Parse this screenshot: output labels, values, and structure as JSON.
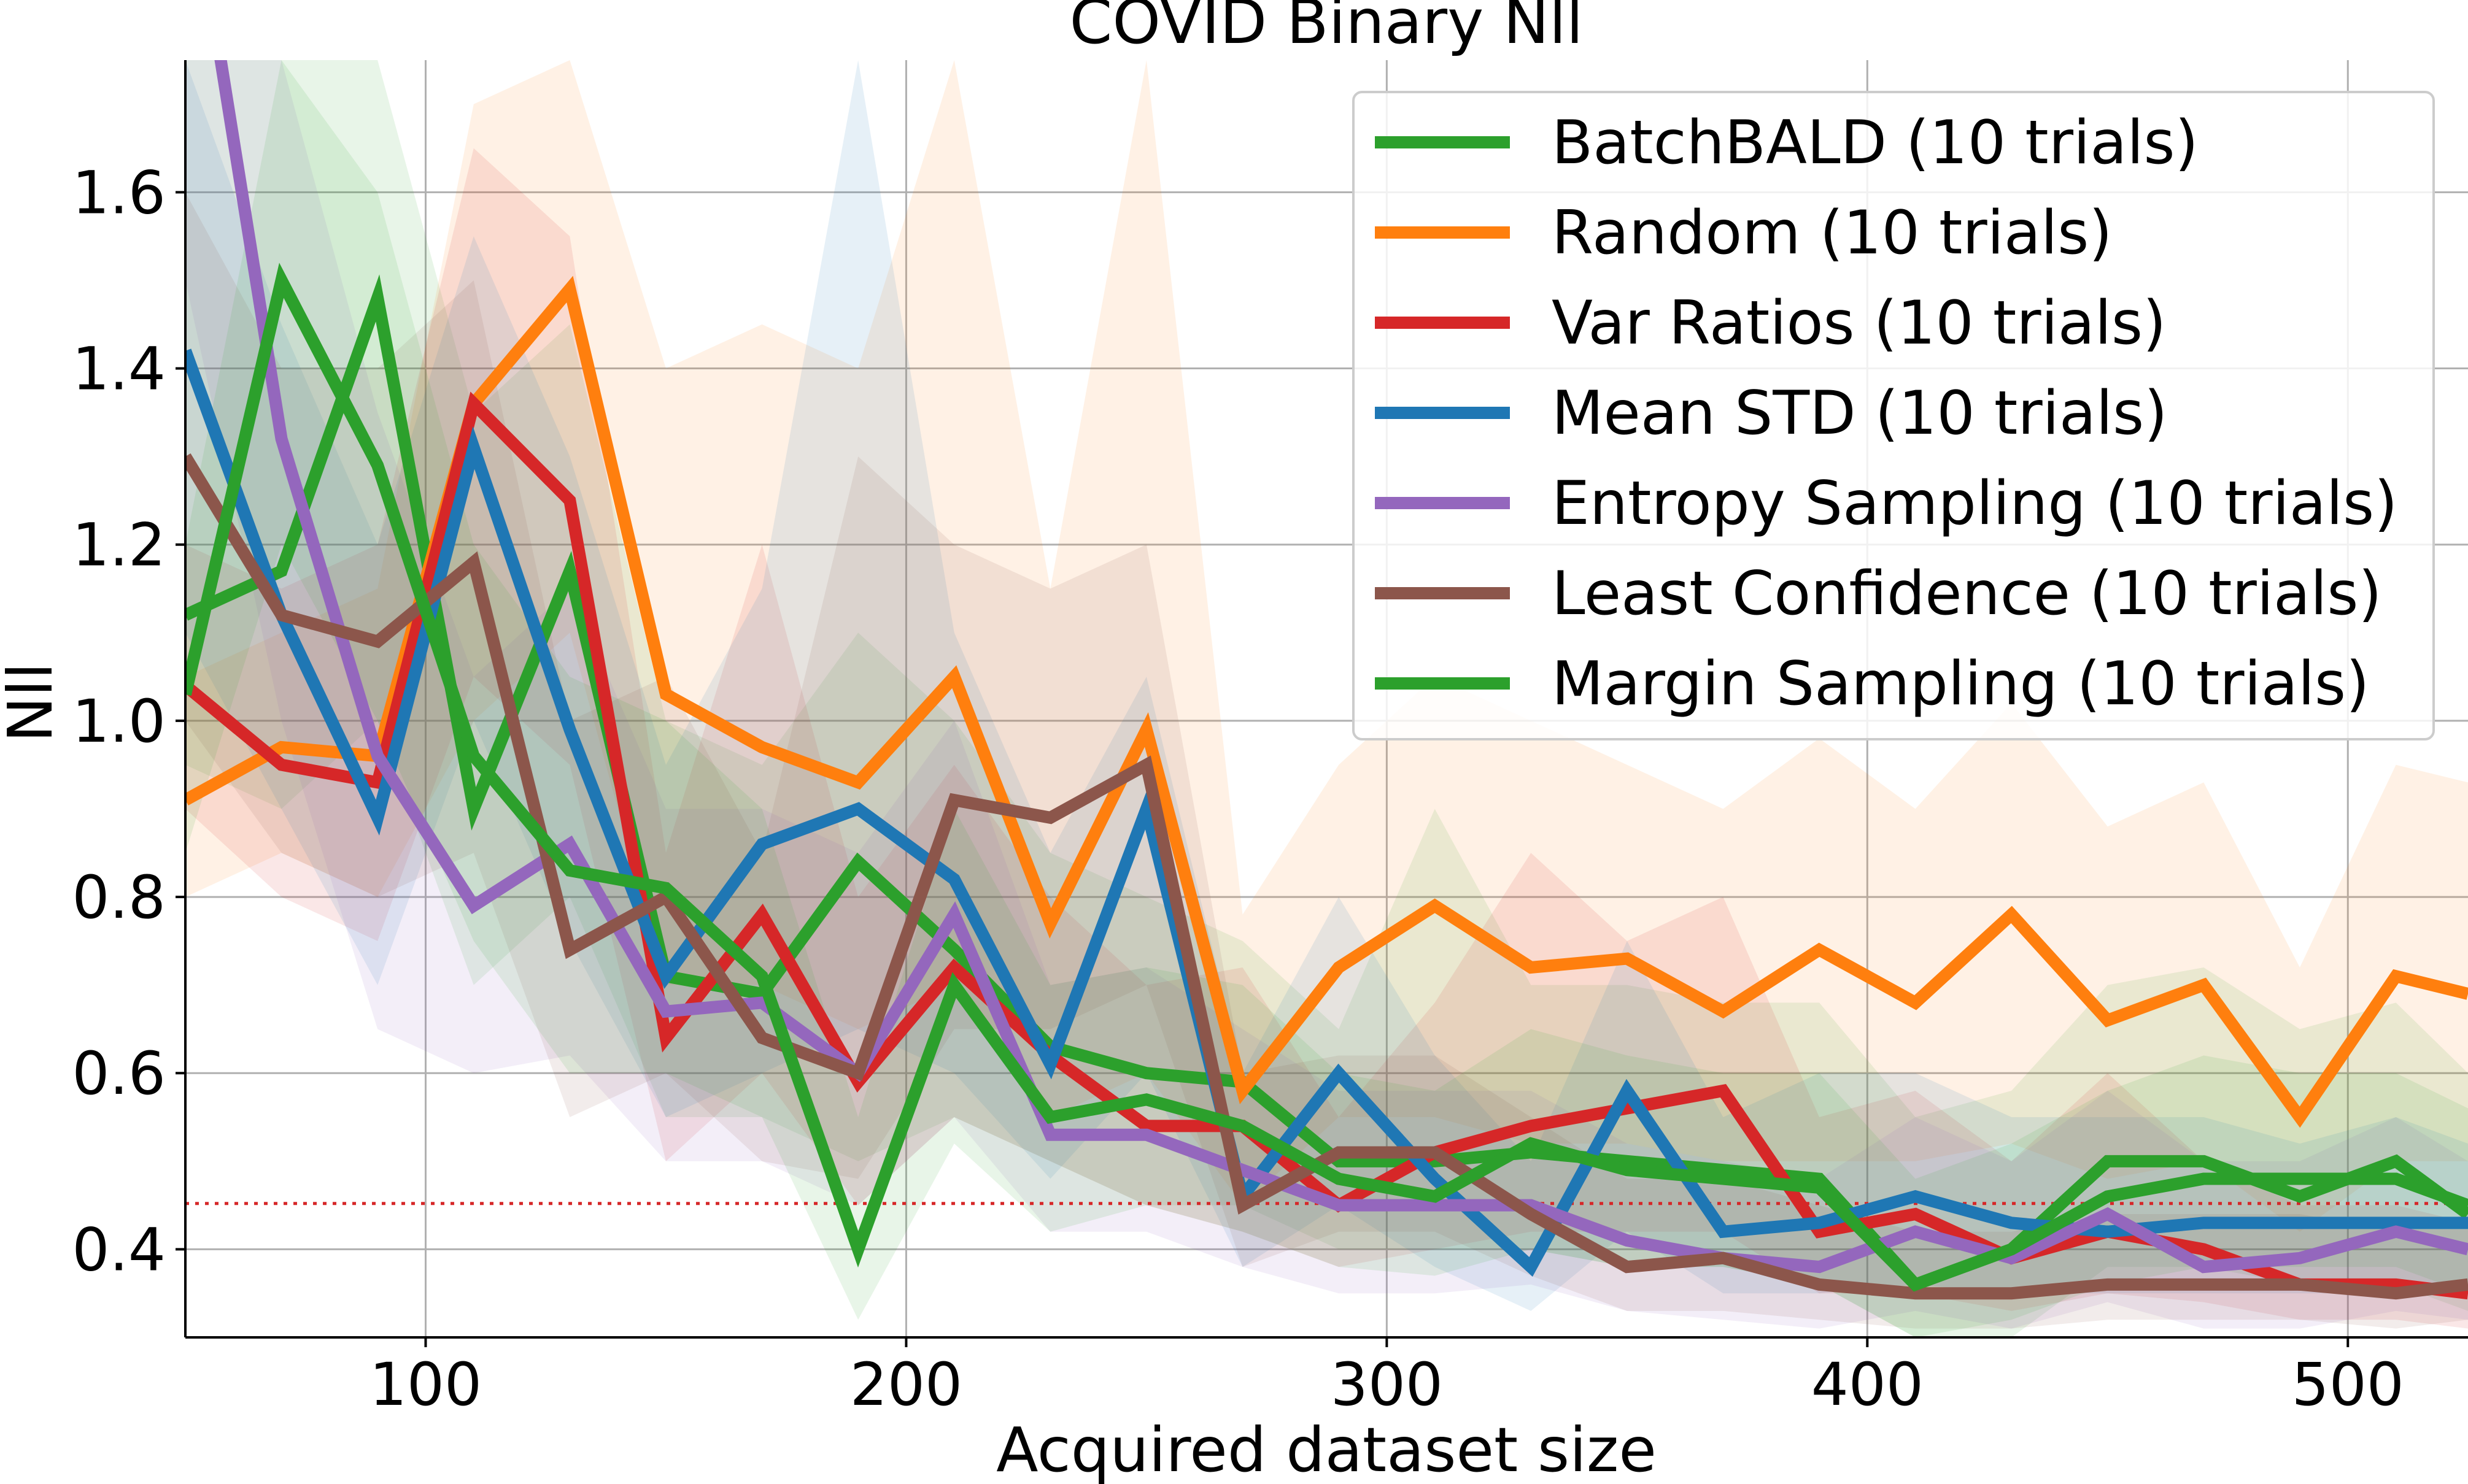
{
  "chart_data": {
    "type": "line",
    "title": "COVID Binary Nll",
    "xlabel": "Acquired dataset size",
    "ylabel": "Nll",
    "xlim": [
      50,
      525
    ],
    "ylim": [
      0.3,
      1.75
    ],
    "xticks": [
      100,
      200,
      300,
      400,
      500
    ],
    "yticks": [
      0.4,
      0.6,
      0.8,
      1.0,
      1.2,
      1.4,
      1.6
    ],
    "ytick_labels": [
      "0.4",
      "0.6",
      "0.8",
      "1.0",
      "1.2",
      "1.4",
      "1.6"
    ],
    "grid": true,
    "legend_placement": "top-right",
    "reference_line": {
      "y": 0.452,
      "style": "dotted",
      "color": "#d62728"
    },
    "x": [
      50,
      70,
      90,
      110,
      130,
      150,
      170,
      190,
      210,
      230,
      250,
      270,
      290,
      310,
      330,
      350,
      370,
      390,
      410,
      430,
      450,
      470,
      490,
      510,
      525
    ],
    "series": [
      {
        "name": "BatchBALD (10 trials)",
        "color": "#2ca02c",
        "values": [
          1.12,
          1.17,
          1.48,
          0.9,
          1.17,
          0.71,
          0.69,
          0.84,
          0.74,
          0.63,
          0.6,
          0.59,
          0.5,
          0.5,
          0.51,
          0.5,
          0.49,
          0.48,
          0.36,
          0.4,
          0.5,
          0.5,
          0.46,
          0.5,
          0.44
        ],
        "band_lower": [
          0.95,
          0.9,
          1.0,
          0.7,
          0.8,
          0.55,
          0.55,
          0.5,
          0.55,
          0.5,
          0.45,
          0.45,
          0.4,
          0.4,
          0.4,
          0.38,
          0.38,
          0.36,
          0.3,
          0.3,
          0.38,
          0.38,
          0.36,
          0.36,
          0.33
        ],
        "band_upper": [
          1.75,
          1.75,
          1.75,
          1.35,
          1.45,
          1.0,
          0.95,
          1.1,
          1.0,
          0.85,
          0.8,
          0.75,
          0.65,
          0.9,
          0.7,
          0.7,
          0.68,
          0.68,
          0.55,
          0.58,
          0.7,
          0.72,
          0.65,
          0.68,
          0.6
        ]
      },
      {
        "name": "Random (10 trials)",
        "color": "#ff7f0e",
        "values": [
          0.91,
          0.97,
          0.96,
          1.36,
          1.49,
          1.03,
          0.97,
          0.93,
          1.05,
          0.77,
          0.99,
          0.58,
          0.72,
          0.79,
          0.72,
          0.73,
          0.67,
          0.74,
          0.68,
          0.78,
          0.66,
          0.7,
          0.55,
          0.71,
          0.69
        ],
        "band_lower": [
          0.8,
          0.85,
          0.8,
          1.0,
          1.1,
          0.7,
          0.7,
          0.65,
          0.7,
          0.55,
          0.6,
          0.45,
          0.55,
          0.55,
          0.52,
          0.52,
          0.5,
          0.5,
          0.5,
          0.52,
          0.48,
          0.5,
          0.42,
          0.5,
          0.5
        ],
        "band_upper": [
          1.05,
          1.1,
          1.15,
          1.7,
          1.75,
          1.4,
          1.45,
          1.4,
          1.75,
          1.15,
          1.75,
          0.78,
          0.95,
          1.05,
          1.0,
          0.95,
          0.9,
          0.98,
          0.9,
          1.02,
          0.88,
          0.93,
          0.72,
          0.95,
          0.93
        ]
      },
      {
        "name": "Var Ratios (10 trials)",
        "color": "#d62728",
        "values": [
          1.04,
          0.95,
          0.93,
          1.36,
          1.25,
          0.64,
          0.78,
          0.59,
          0.72,
          0.62,
          0.54,
          0.54,
          0.45,
          0.51,
          0.54,
          0.56,
          0.58,
          0.42,
          0.44,
          0.39,
          0.42,
          0.4,
          0.36,
          0.36,
          0.35
        ],
        "band_lower": [
          0.9,
          0.8,
          0.75,
          1.05,
          0.95,
          0.5,
          0.6,
          0.45,
          0.55,
          0.5,
          0.45,
          0.42,
          0.38,
          0.4,
          0.42,
          0.42,
          0.42,
          0.35,
          0.35,
          0.33,
          0.35,
          0.34,
          0.32,
          0.32,
          0.31
        ],
        "band_upper": [
          1.2,
          1.15,
          1.2,
          1.65,
          1.55,
          0.85,
          1.2,
          0.8,
          0.95,
          0.8,
          0.7,
          0.72,
          0.55,
          0.68,
          0.85,
          0.75,
          0.8,
          0.55,
          0.58,
          0.5,
          0.6,
          0.5,
          0.45,
          0.45,
          0.43
        ]
      },
      {
        "name": "Mean STD (10 trials)",
        "color": "#1f77b4",
        "values": [
          1.42,
          1.12,
          0.89,
          1.31,
          0.99,
          0.71,
          0.86,
          0.9,
          0.82,
          0.61,
          0.9,
          0.46,
          0.6,
          0.48,
          0.38,
          0.58,
          0.42,
          0.43,
          0.46,
          0.43,
          0.42,
          0.43,
          0.43,
          0.43,
          0.43
        ],
        "band_lower": [
          1.1,
          0.9,
          0.7,
          1.0,
          0.75,
          0.55,
          0.6,
          0.65,
          0.6,
          0.48,
          0.6,
          0.38,
          0.45,
          0.38,
          0.33,
          0.42,
          0.35,
          0.35,
          0.36,
          0.35,
          0.35,
          0.35,
          0.35,
          0.35,
          0.35
        ],
        "band_upper": [
          1.75,
          1.45,
          1.2,
          1.55,
          1.3,
          0.95,
          1.15,
          1.75,
          1.1,
          0.85,
          1.05,
          0.6,
          0.8,
          0.62,
          0.5,
          0.75,
          0.55,
          0.6,
          0.6,
          0.55,
          0.55,
          0.55,
          0.52,
          0.55,
          0.52
        ]
      },
      {
        "name": "Entropy Sampling (10 trials)",
        "color": "#9467bd",
        "values": [
          2.0,
          1.32,
          0.96,
          0.79,
          0.86,
          0.67,
          0.68,
          0.6,
          0.78,
          0.53,
          0.53,
          0.49,
          0.45,
          0.45,
          0.45,
          0.41,
          0.39,
          0.38,
          0.42,
          0.39,
          0.44,
          0.38,
          0.39,
          0.42,
          0.4
        ],
        "band_lower": [
          1.5,
          1.0,
          0.65,
          0.6,
          0.62,
          0.5,
          0.5,
          0.45,
          0.55,
          0.42,
          0.42,
          0.38,
          0.35,
          0.35,
          0.36,
          0.33,
          0.32,
          0.31,
          0.33,
          0.31,
          0.34,
          0.31,
          0.31,
          0.33,
          0.32
        ],
        "band_upper": [
          1.75,
          1.75,
          1.35,
          1.05,
          1.15,
          0.9,
          0.9,
          0.85,
          1.0,
          0.7,
          0.72,
          0.65,
          0.58,
          0.58,
          0.58,
          0.52,
          0.5,
          0.48,
          0.55,
          0.5,
          0.58,
          0.5,
          0.5,
          0.55,
          0.5
        ]
      },
      {
        "name": "Least Confidence (10 trials)",
        "color": "#8c564b",
        "values": [
          1.3,
          1.12,
          1.09,
          1.18,
          0.74,
          0.8,
          0.64,
          0.6,
          0.91,
          0.89,
          0.95,
          0.45,
          0.51,
          0.51,
          0.44,
          0.38,
          0.39,
          0.36,
          0.35,
          0.35,
          0.36,
          0.36,
          0.36,
          0.35,
          0.36
        ],
        "band_lower": [
          1.0,
          0.85,
          0.8,
          0.85,
          0.55,
          0.6,
          0.5,
          0.48,
          0.65,
          0.65,
          0.7,
          0.38,
          0.42,
          0.42,
          0.37,
          0.33,
          0.33,
          0.32,
          0.31,
          0.31,
          0.32,
          0.32,
          0.32,
          0.31,
          0.32
        ],
        "band_upper": [
          1.6,
          1.4,
          1.4,
          1.5,
          1.0,
          1.05,
          0.85,
          1.3,
          1.2,
          1.15,
          1.2,
          0.6,
          0.62,
          0.62,
          0.55,
          0.48,
          0.48,
          0.45,
          0.42,
          0.42,
          0.44,
          0.44,
          0.44,
          0.42,
          0.44
        ]
      },
      {
        "name": "Margin Sampling (10 trials)",
        "color": "#2ca02c",
        "values": [
          1.03,
          1.5,
          1.29,
          0.96,
          0.83,
          0.81,
          0.71,
          0.4,
          0.7,
          0.55,
          0.57,
          0.54,
          0.48,
          0.46,
          0.52,
          0.49,
          0.48,
          0.47,
          0.36,
          0.4,
          0.46,
          0.48,
          0.48,
          0.48,
          0.45
        ],
        "band_lower": [
          0.85,
          1.2,
          1.0,
          0.75,
          0.6,
          0.6,
          0.55,
          0.32,
          0.52,
          0.42,
          0.45,
          0.42,
          0.38,
          0.37,
          0.4,
          0.38,
          0.38,
          0.36,
          0.3,
          0.32,
          0.36,
          0.38,
          0.38,
          0.38,
          0.35
        ],
        "band_upper": [
          1.2,
          1.75,
          1.6,
          1.2,
          1.05,
          1.0,
          0.9,
          0.55,
          0.9,
          0.7,
          0.72,
          0.7,
          0.6,
          0.58,
          0.65,
          0.62,
          0.6,
          0.6,
          0.48,
          0.52,
          0.58,
          0.62,
          0.6,
          0.6,
          0.56
        ]
      }
    ]
  }
}
